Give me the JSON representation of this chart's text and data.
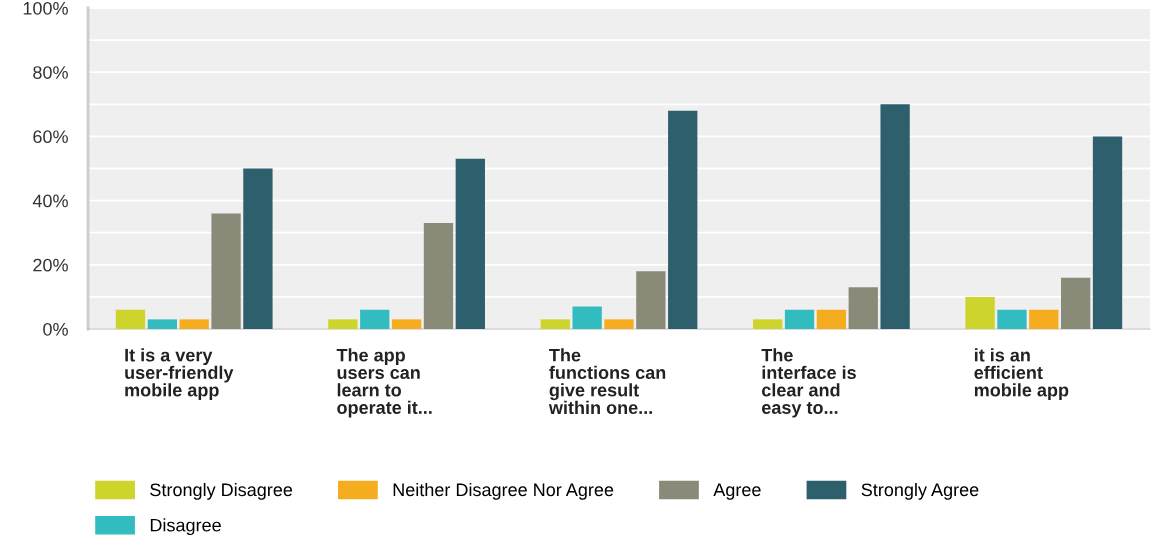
{
  "chart_data": {
    "type": "bar",
    "categories": [
      "It is a very\nuser-friendly\nmobile app",
      "The app\nusers can\nlearn to\noperate it...",
      "The\nfunctions can\ngive result\nwithin one...",
      "The\ninterface is\nclear and\neasy to...",
      "it is an\nefficient\nmobile app"
    ],
    "series": [
      {
        "name": "Strongly Disagree",
        "color": "#cdd42b",
        "values": [
          6,
          3,
          3,
          3,
          10
        ]
      },
      {
        "name": "Disagree",
        "color": "#33bcbf",
        "values": [
          3,
          6,
          7,
          6,
          6
        ]
      },
      {
        "name": "Neither Disagree Nor Agree",
        "color": "#f5ad1f",
        "values": [
          3,
          3,
          3,
          6,
          6
        ]
      },
      {
        "name": "Agree",
        "color": "#8a8a78",
        "values": [
          36,
          33,
          18,
          13,
          16
        ]
      },
      {
        "name": "Strongly Agree",
        "color": "#2e5f6c",
        "values": [
          50,
          53,
          68,
          70,
          60
        ]
      }
    ],
    "ylim": [
      0,
      100
    ],
    "yticks": [
      {
        "value": 0,
        "label": "0%"
      },
      {
        "value": 10,
        "label": null
      },
      {
        "value": 20,
        "label": "20%"
      },
      {
        "value": 30,
        "label": null
      },
      {
        "value": 40,
        "label": "40%"
      },
      {
        "value": 50,
        "label": null
      },
      {
        "value": 60,
        "label": "60%"
      },
      {
        "value": 70,
        "label": null
      },
      {
        "value": 80,
        "label": "80%"
      },
      {
        "value": 90,
        "label": null
      },
      {
        "value": 100,
        "label": "100%"
      }
    ],
    "grid": "y",
    "legend": "bottom"
  }
}
